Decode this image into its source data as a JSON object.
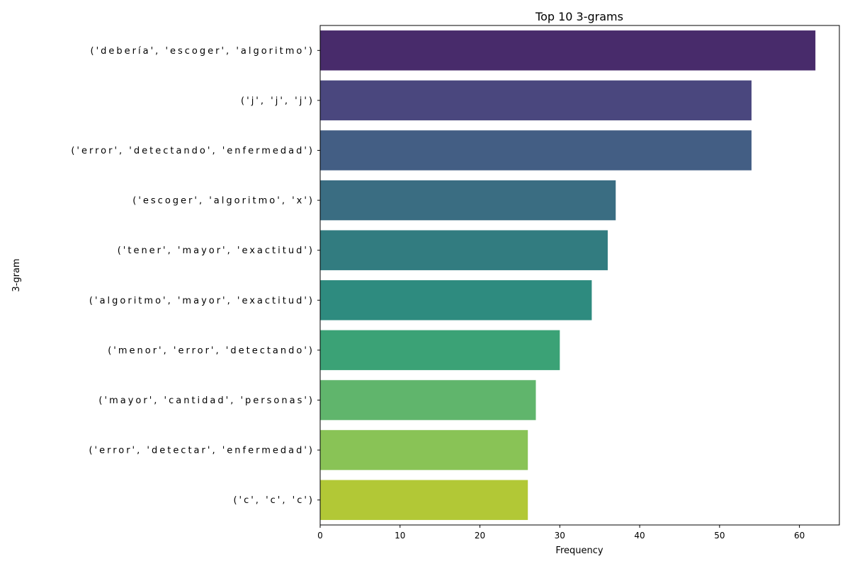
{
  "chart_data": {
    "type": "bar",
    "orientation": "horizontal",
    "title": "Top 10 3-grams",
    "xlabel": "Frequency",
    "ylabel": "3-gram",
    "xlim": [
      0,
      65
    ],
    "xticks": [
      0,
      10,
      20,
      30,
      40,
      50,
      60
    ],
    "grid": false,
    "categories": [
      "('debería', 'escoger', 'algoritmo')",
      "('j', 'j', 'j')",
      "('error', 'detectando', 'enfermedad')",
      "('escoger', 'algoritmo', 'x')",
      "('tener', 'mayor', 'exactitud')",
      "('algoritmo', 'mayor', 'exactitud')",
      "('menor', 'error', 'detectando')",
      "('mayor', 'cantidad', 'personas')",
      "('error', 'detectar', 'enfermedad')",
      "('c', 'c', 'c')"
    ],
    "values": [
      62,
      54,
      54,
      37,
      36,
      34,
      30,
      27,
      26,
      26
    ],
    "colors": [
      "#482b6b",
      "#4a477e",
      "#435e84",
      "#3a6d82",
      "#327c80",
      "#2e8b7f",
      "#3ba276",
      "#60b56c",
      "#89c356",
      "#b2c836"
    ]
  }
}
